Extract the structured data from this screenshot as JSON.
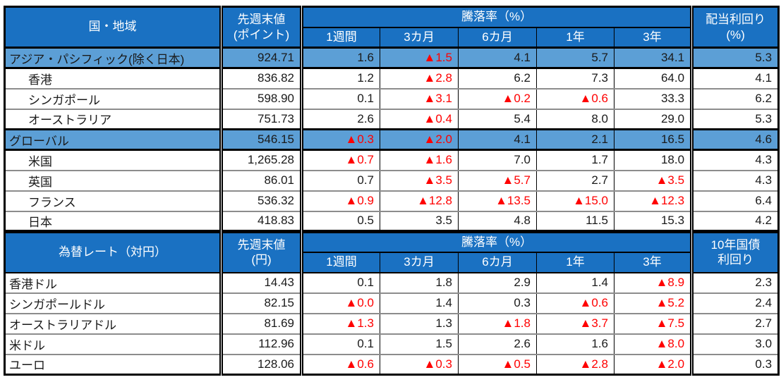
{
  "colors": {
    "header_bg": "#1A71C2",
    "highlight_row_bg": "#5C9FD6",
    "negative_value": "#FF0000",
    "row_divider_gray": "#8C8C8C",
    "border_black": "#000000"
  },
  "negative_marker": "▲",
  "sections": [
    {
      "title": "国・地域",
      "value_header": {
        "line1": "先週末値",
        "line2": "(ポイント)"
      },
      "change_header": "騰落率（%）",
      "periods": [
        "1週間",
        "3カ月",
        "6カ月",
        "1年",
        "3年"
      ],
      "right_header": {
        "line1": "配当利回り",
        "line2": "(%)"
      },
      "rows": [
        {
          "label": "アジア・パシフィック(除く日本)",
          "highlight": true,
          "indent": false,
          "values": [
            "924.71",
            "1.6",
            "▲1.5",
            "4.1",
            "5.7",
            "34.1",
            "5.3"
          ]
        },
        {
          "label": "香港",
          "highlight": false,
          "indent": true,
          "values": [
            "836.82",
            "1.2",
            "▲2.8",
            "6.2",
            "7.3",
            "64.0",
            "4.1"
          ]
        },
        {
          "label": "シンガポール",
          "highlight": false,
          "indent": true,
          "values": [
            "598.90",
            "0.1",
            "▲3.1",
            "▲0.2",
            "▲0.6",
            "33.3",
            "6.2"
          ]
        },
        {
          "label": "オーストラリア",
          "highlight": false,
          "indent": true,
          "values": [
            "751.73",
            "2.6",
            "▲0.4",
            "5.4",
            "8.0",
            "29.0",
            "5.3"
          ]
        },
        {
          "label": "グローバル",
          "highlight": true,
          "indent": false,
          "values": [
            "546.15",
            "▲0.3",
            "▲2.0",
            "4.1",
            "2.1",
            "16.5",
            "4.6"
          ]
        },
        {
          "label": "米国",
          "highlight": false,
          "indent": true,
          "values": [
            "1,265.28",
            "▲0.7",
            "▲1.6",
            "7.0",
            "1.7",
            "18.0",
            "4.3"
          ]
        },
        {
          "label": "英国",
          "highlight": false,
          "indent": true,
          "values": [
            "86.01",
            "0.7",
            "▲3.5",
            "▲5.7",
            "2.7",
            "▲3.5",
            "4.3"
          ]
        },
        {
          "label": "フランス",
          "highlight": false,
          "indent": true,
          "values": [
            "536.32",
            "▲0.9",
            "▲12.8",
            "▲13.5",
            "▲15.0",
            "▲12.3",
            "6.4"
          ]
        },
        {
          "label": "日本",
          "highlight": false,
          "indent": true,
          "values": [
            "418.83",
            "0.5",
            "3.5",
            "4.8",
            "11.5",
            "15.3",
            "4.2"
          ]
        }
      ]
    },
    {
      "title": "為替レート（対円）",
      "value_header": {
        "line1": "先週末値",
        "line2": "(円)"
      },
      "change_header": "騰落率（%）",
      "periods": [
        "1週間",
        "3カ月",
        "6カ月",
        "1年",
        "3年"
      ],
      "right_header": {
        "line1": "10年国債",
        "line2": "利回り"
      },
      "rows": [
        {
          "label": "香港ドル",
          "highlight": false,
          "indent": false,
          "values": [
            "14.43",
            "0.1",
            "1.8",
            "2.9",
            "1.4",
            "▲8.9",
            "2.3"
          ]
        },
        {
          "label": "シンガポールドル",
          "highlight": false,
          "indent": false,
          "values": [
            "82.15",
            "▲0.0",
            "1.4",
            "0.3",
            "▲0.6",
            "▲5.2",
            "2.4"
          ]
        },
        {
          "label": "オーストラリアドル",
          "highlight": false,
          "indent": false,
          "values": [
            "81.69",
            "▲1.3",
            "1.3",
            "▲1.8",
            "▲3.7",
            "▲7.5",
            "2.7"
          ]
        },
        {
          "label": "米ドル",
          "highlight": false,
          "indent": false,
          "values": [
            "112.96",
            "0.1",
            "1.5",
            "2.6",
            "1.6",
            "▲8.0",
            "3.0"
          ]
        },
        {
          "label": "ユーロ",
          "highlight": false,
          "indent": false,
          "values": [
            "128.06",
            "▲0.6",
            "▲0.3",
            "▲0.5",
            "▲2.8",
            "▲2.0",
            "0.3"
          ]
        }
      ]
    }
  ]
}
